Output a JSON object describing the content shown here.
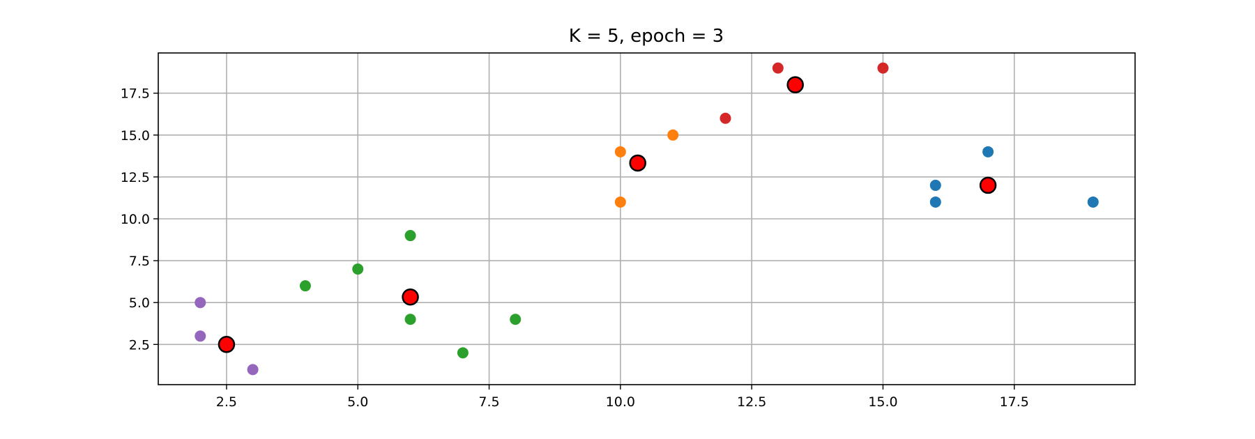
{
  "chart_data": {
    "type": "scatter",
    "title": "K = 5, epoch = 3",
    "xlabel": "",
    "ylabel": "",
    "xlim": [
      1.2,
      19.8
    ],
    "ylim": [
      0.1,
      19.9
    ],
    "xticks": [
      2.5,
      5.0,
      7.5,
      10.0,
      12.5,
      15.0,
      17.5
    ],
    "xtick_labels": [
      "2.5",
      "5.0",
      "7.5",
      "10.0",
      "12.5",
      "15.0",
      "17.5"
    ],
    "yticks": [
      2.5,
      5.0,
      7.5,
      10.0,
      12.5,
      15.0,
      17.5
    ],
    "ytick_labels": [
      "2.5",
      "5.0",
      "7.5",
      "10.0",
      "12.5",
      "15.0",
      "17.5"
    ],
    "grid": true,
    "series": [
      {
        "color": "#1f77b4",
        "points": [
          [
            16,
            12
          ],
          [
            16,
            11
          ],
          [
            17,
            14
          ],
          [
            19,
            11
          ]
        ]
      },
      {
        "color": "#ff7f0e",
        "points": [
          [
            10,
            14
          ],
          [
            10,
            11
          ],
          [
            11,
            15
          ]
        ]
      },
      {
        "color": "#2ca02c",
        "points": [
          [
            4,
            6
          ],
          [
            5,
            7
          ],
          [
            6,
            9
          ],
          [
            6,
            4
          ],
          [
            7,
            2
          ],
          [
            8,
            4
          ]
        ]
      },
      {
        "color": "#d62728",
        "points": [
          [
            12,
            16
          ],
          [
            13,
            19
          ],
          [
            15,
            19
          ]
        ]
      },
      {
        "color": "#9467bd",
        "points": [
          [
            2,
            5
          ],
          [
            2,
            3
          ],
          [
            3,
            1
          ]
        ]
      }
    ],
    "centroids": {
      "fill": "#ff0000",
      "edge": "#000000",
      "points": [
        [
          2.5,
          2.5
        ],
        [
          6.0,
          5.33
        ],
        [
          10.33,
          13.33
        ],
        [
          13.33,
          18.0
        ],
        [
          17.0,
          12.0
        ]
      ]
    }
  }
}
